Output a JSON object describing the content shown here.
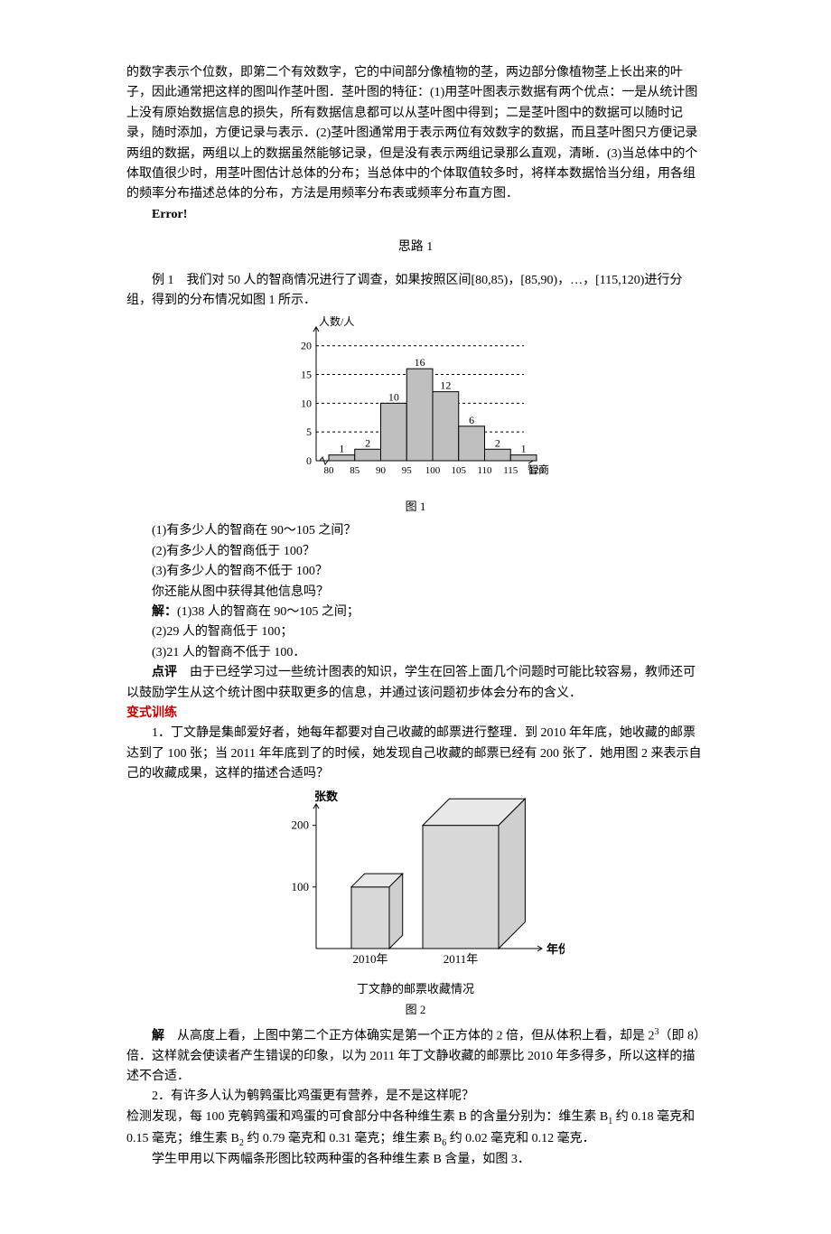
{
  "text": {
    "p0": "的数字表示个位数，即第二个有效数字，它的中间部分像植物的茎，两边部分像植物茎上长出来的叶子，因此通常把这样的图叫作茎叶图．茎叶图的特征：(1)用茎叶图表示数据有两个优点：一是从统计图上没有原始数据信息的损失，所有数据信息都可以从茎叶图中得到；二是茎叶图中的数据可以随时记录，随时添加，方便记录与表示．(2)茎叶图通常用于表示两位有效数字的数据，而且茎叶图只方便记录两组的数据，两组以上的数据虽然能够记录，但是没有表示两组记录那么直观，清晰．(3)当总体中的个体取值很少时，用茎叶图估计总体的分布；当总体中的个体取值较多时，将样本数据恰当分组，用各组的频率分布描述总体的分布，方法是用频率分布表或频率分布直方图．",
    "error": "Error!",
    "silu1": "思路 1",
    "ex1_head": "例 1　我们对 50 人的智商情况进行了调查，如果按照区间[80,85)，[85,90)，…，[115,120)进行分组，得到的分布情况如图 1 所示．",
    "fig1_caption": "图 1",
    "q1": "(1)有多少人的智商在 90～105 之间？",
    "q2": "(2)有多少人的智商低于 100？",
    "q3": "(3)有多少人的智商不低于 100？",
    "q_extra": "你还能从图中获得其他信息吗？",
    "a_head": "解：",
    "a1": "(1)38 人的智商在 90～105 之间；",
    "a2": "(2)29 人的智商低于 100；",
    "a3": "(3)21 人的智商不低于 100．",
    "dp_head": "点评",
    "dp_body": "　由于已经学习过一些统计图表的知识，学生在回答上面几个问题时可能比较容易，教师还可以鼓励学生从这个统计图中获取更多的信息，并通过该问题初步体会分布的含义．",
    "variant": "变式训练",
    "v1": "1．丁文静是集邮爱好者，她每年都要对自己收藏的邮票进行整理．到 2010 年年底，她收藏的邮票达到了 100 张；当 2011 年年底到了的时候，她发现自己收藏的邮票已经有 200 张了．她用图 2 来表示自己的收藏成果，这样的描述合适吗？",
    "fig2_caption1": "丁文静的邮票收藏情况",
    "fig2_caption2": "图 2",
    "v1_a_head": "解",
    "v1_a_body1": "　从高度上看，上图中第二个正方体确实是第一个正方体的 2 倍，但从体积上看，却是 2",
    "v1_a_body2": "（即 8）倍．这样就会使读者产生错误的印象，以为 2011 年丁文静收藏的邮票比 2010 年多得多，所以这样的描述不合适．",
    "v2_head": "2．有许多人认为鹌鹑蛋比鸡蛋更有营养，是不是这样呢？",
    "v2_p1a": "检测发现，每 100 克鹌鹑蛋和鸡蛋的可食部分中各种维生素 B 的含量分别为：维生素 B",
    "v2_p1b": " 约 0.18 毫克和 0.15 毫克；维生素 B",
    "v2_p1c": " 约 0.79 毫克和 0.31 毫克；维生素 B",
    "v2_p1d": " 约 0.02 毫克和 0.12 毫克．",
    "v2_p2": "学生甲用以下两幅条形图比较两种蛋的各种维生素 B 含量，如图 3．"
  },
  "fig1": {
    "type": "bar",
    "axis_color": "#000000",
    "bar_fill": "#bfbfbf",
    "bar_border": "#000000",
    "dashed_color": "#000000",
    "label_color": "#000000",
    "font_size": 12,
    "y_title": "人数/人",
    "x_title": "智商",
    "y_ticks": [
      0,
      5,
      10,
      15,
      20
    ],
    "ymax": 22,
    "x_labels": [
      "80",
      "85",
      "90",
      "95",
      "100",
      "105",
      "110",
      "115",
      "120"
    ],
    "values": [
      1,
      2,
      10,
      16,
      12,
      6,
      2,
      1
    ],
    "bar_labels": [
      "1",
      "2",
      "10",
      "16",
      "12",
      "6",
      "2",
      "1"
    ]
  },
  "fig2": {
    "type": "3dbar",
    "axis_color": "#000000",
    "fill_top": "#e8e8e8",
    "fill_side": "#cfcfcf",
    "fill_front": "#d8d8d8",
    "border": "#000000",
    "y_title": "张数",
    "x_title": "年份",
    "y_ticks": [
      100,
      200
    ],
    "x_labels": [
      "2010年",
      "2011年"
    ],
    "values": [
      100,
      200
    ],
    "ratio": 2
  }
}
